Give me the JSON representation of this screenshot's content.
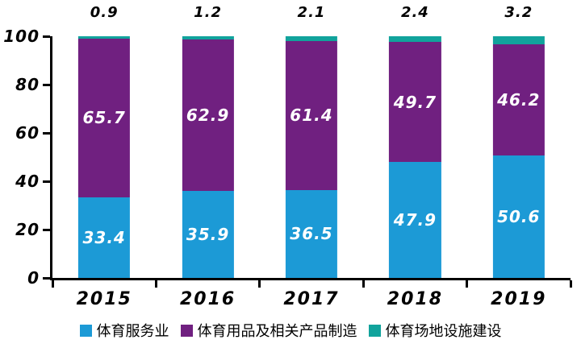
{
  "chart_data": {
    "type": "bar",
    "stacked": true,
    "orientation": "vertical",
    "categories": [
      "2015",
      "2016",
      "2017",
      "2018",
      "2019"
    ],
    "series": [
      {
        "name": "体育服务业",
        "color": "#1C9AD6",
        "values": [
          33.4,
          35.9,
          36.5,
          47.9,
          50.6
        ],
        "label_position": "inside"
      },
      {
        "name": "体育用品及相关产品制造",
        "color": "#702080",
        "values": [
          65.7,
          62.9,
          61.4,
          49.7,
          46.2
        ],
        "label_position": "inside"
      },
      {
        "name": "体育场地设施建设",
        "color": "#11A39C",
        "values": [
          0.9,
          1.2,
          2.1,
          2.4,
          3.2
        ],
        "label_position": "above"
      }
    ],
    "title": "",
    "xlabel": "",
    "ylabel": "",
    "ylim": [
      0,
      100
    ],
    "yticks": [
      0,
      20,
      40,
      60,
      80,
      100
    ],
    "grid": false,
    "legend_position": "bottom"
  },
  "colors": {
    "background": "#ffffff",
    "axis": "#000000",
    "inside_label_text": "#ffffff",
    "outside_label_text": "#000000"
  }
}
